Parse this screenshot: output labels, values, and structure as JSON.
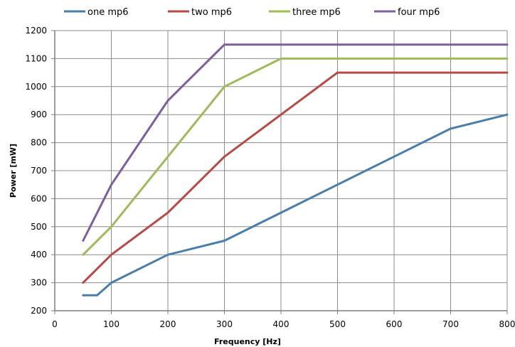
{
  "chart_data": {
    "type": "line",
    "xlabel": "Frequency [Hz]",
    "ylabel": "Power [mW]",
    "xlim": [
      0,
      800
    ],
    "ylim": [
      200,
      1200
    ],
    "xticks": [
      0,
      100,
      200,
      300,
      400,
      500,
      600,
      700,
      800
    ],
    "yticks": [
      200,
      300,
      400,
      500,
      600,
      700,
      800,
      900,
      1000,
      1100,
      1200
    ],
    "grid": true,
    "legend_position": "top",
    "series": [
      {
        "name": "one mp6",
        "color": "#4a7ea8",
        "x": [
          50,
          75,
          100,
          200,
          300,
          400,
          500,
          600,
          700,
          800
        ],
        "y": [
          255,
          255,
          300,
          400,
          450,
          550,
          650,
          750,
          850,
          900
        ]
      },
      {
        "name": "two mp6",
        "color": "#b84a45",
        "x": [
          50,
          100,
          200,
          300,
          400,
          500,
          800
        ],
        "y": [
          300,
          400,
          550,
          750,
          900,
          1050,
          1050
        ]
      },
      {
        "name": "three mp6",
        "color": "#9dbb59",
        "x": [
          50,
          100,
          200,
          300,
          400,
          800
        ],
        "y": [
          400,
          500,
          750,
          1000,
          1100,
          1100
        ]
      },
      {
        "name": "four mp6",
        "color": "#7c5f9d",
        "x": [
          50,
          100,
          200,
          300,
          800
        ],
        "y": [
          450,
          650,
          950,
          1150,
          1150
        ]
      }
    ]
  }
}
